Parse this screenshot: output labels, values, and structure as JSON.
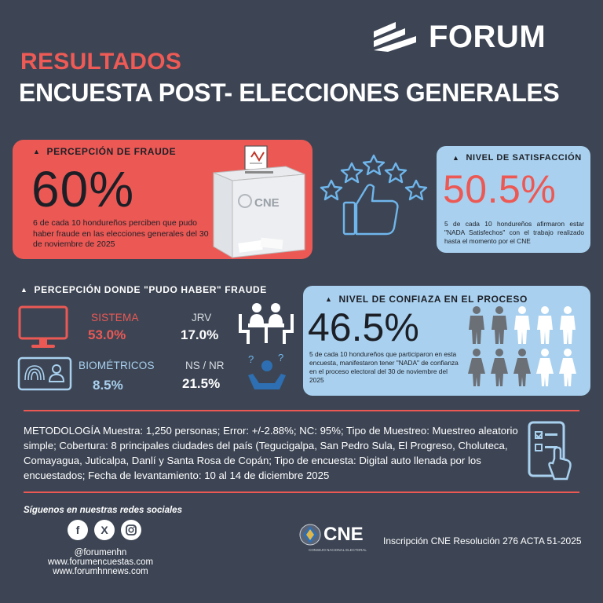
{
  "brand": {
    "name": "FORUM"
  },
  "header": {
    "title_top": "RESULTADOS",
    "title_main": "ENCUESTA POST- ELECCIONES GENERALES"
  },
  "fraude": {
    "label": "PERCEPCIÓN DE FRAUDE",
    "value": "60%",
    "description": "6 de cada 10 hondureños perciben que pudo haber fraude en las elecciones generales del 30 de noviembre de 2025",
    "ballot_box_label": "CNE"
  },
  "satisfaccion": {
    "label": "NIVEL DE SATISFACCIÓN",
    "value": "50.5%",
    "description": "5 de cada 10 hondureños afirmaron estar \"NADA Satisfechos\" con el trabajo realizado hasta el momento por el CNE"
  },
  "donde_fraude": {
    "label": "PERCEPCIÓN DONDE \"PUDO HABER\" FRAUDE",
    "items": [
      {
        "label": "SISTEMA",
        "value": "53.0%"
      },
      {
        "label": "JRV",
        "value": "17.0%"
      },
      {
        "label": "BIOMÉTRICOS",
        "value": "8.5%"
      },
      {
        "label": "NS / NR",
        "value": "21.5%"
      }
    ]
  },
  "confianza": {
    "label": "NIVEL DE CONFIAZA EN EL PROCESO",
    "value": "46.5%",
    "description": "5 de cada 10 hondureños que participaron en esta encuesta, manifestaron tener \"NADA\" de confianza en el proceso electoral del 30 de noviembre del 2025",
    "people_highlighted_fraction": 0.5
  },
  "metodologia": {
    "text": "METODOLOGÍA Muestra: 1,250 personas; Error: +/-2.88%; NC: 95%; Tipo de Muestreo: Muestreo aleatorio simple; Cobertura: 8 principales ciudades del país (Tegucigalpa, San Pedro Sula, El Progreso, Choluteca, Comayagua, Juticalpa, Danlí y Santa Rosa de Copán; Tipo de encuesta: Digital auto llenada por los encuestados; Fecha de levantamiento: 10 al 14 de diciembre 2025"
  },
  "social": {
    "title": "Síguenos en nuestras redes sociales",
    "handle": "@forumenhn",
    "site1": "www.forumencuestas.com",
    "site2": "www.forumhnnews.com"
  },
  "cne": {
    "name": "CNE",
    "subtitle": "CONSEJO NACIONAL ELECTORAL",
    "inscripcion": "Inscripción CNE Resolución 276 ACTA 51-2025"
  },
  "colors": {
    "background": "#3d4554",
    "accent_red": "#ec5955",
    "accent_blue": "#a9d1ef",
    "dark_text": "#1d1f26"
  }
}
